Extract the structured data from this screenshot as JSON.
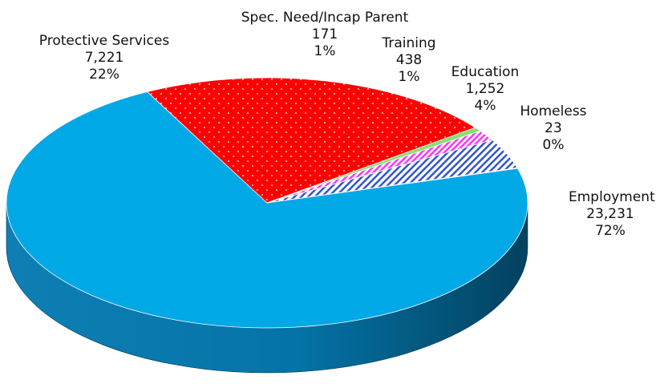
{
  "chart_data": {
    "type": "pie",
    "title": "",
    "legend": "none",
    "slices": [
      {
        "label": "Employment",
        "value": 23231,
        "value_text": "23,231",
        "percent_text": "72%",
        "color": "#00a8e6",
        "pattern": "solid"
      },
      {
        "label": "Protective Services",
        "value": 7221,
        "value_text": "7,221",
        "percent_text": "22%",
        "color": "#ff0000",
        "pattern": "dots"
      },
      {
        "label": "Spec. Need/Incap Parent",
        "value": 171,
        "value_text": "171",
        "percent_text": "1%",
        "color": "#88e070",
        "pattern": "solid"
      },
      {
        "label": "Training",
        "value": 438,
        "value_text": "438",
        "percent_text": "1%",
        "color": "#ff33ff",
        "pattern": "stripes"
      },
      {
        "label": "Education",
        "value": 1252,
        "value_text": "1,252",
        "percent_text": "4%",
        "color": "#3355cc",
        "pattern": "stripes"
      },
      {
        "label": "Homeless",
        "value": 23,
        "value_text": "23",
        "percent_text": "0%",
        "color": "#1f3f9f",
        "pattern": "solid"
      }
    ]
  }
}
